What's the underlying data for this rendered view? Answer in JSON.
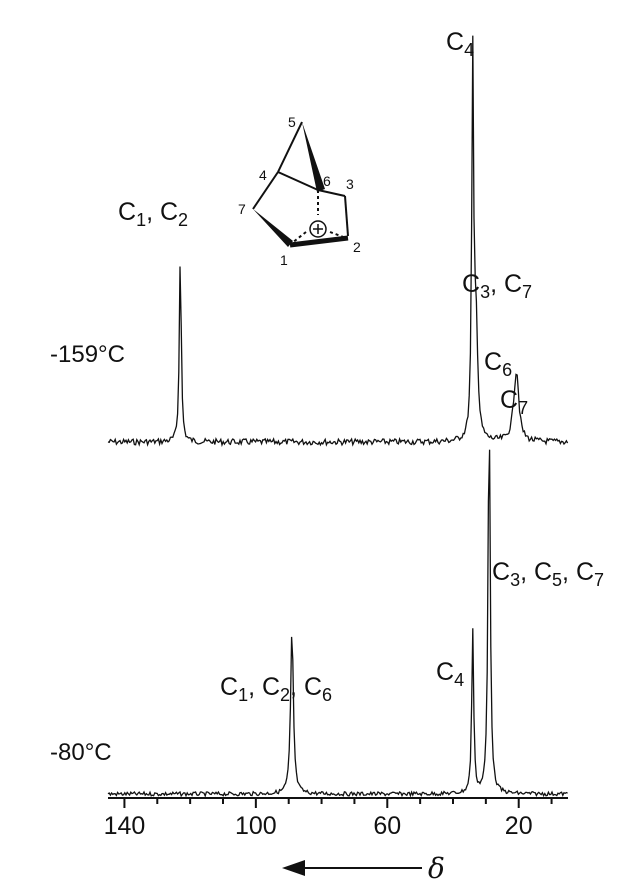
{
  "chart_data": {
    "type": "line",
    "xlabel": "δ",
    "x_axis": {
      "reversed": true,
      "xlim": [
        145,
        5
      ],
      "ticks": [
        140,
        100,
        60,
        20
      ],
      "tick_labels": [
        "140",
        "100",
        "60",
        "20"
      ]
    },
    "grid": false,
    "series": [
      {
        "name": "-159°C",
        "peaks": [
          {
            "x": 123,
            "height": 0.86,
            "width": 0.35,
            "label": [
              "C",
              "1",
              ", C",
              "2"
            ]
          },
          {
            "x": 34,
            "height": 1.7,
            "width": 0.35,
            "label": [
              "C",
              "4"
            ]
          },
          {
            "x": 33,
            "height": 0.52,
            "width": 0.6,
            "label": [
              "C",
              "3",
              ", C",
              "7"
            ]
          },
          {
            "x": 21,
            "height": 0.18,
            "width": 1.0,
            "label": [
              "C",
              "6"
            ]
          },
          {
            "x": 20.5,
            "height": 0.17,
            "width": 0.7,
            "label": [
              "C",
              "7"
            ]
          }
        ]
      },
      {
        "name": "-80°C",
        "peaks": [
          {
            "x": 89,
            "height": 0.75,
            "width": 0.5,
            "label": [
              "C",
              "1",
              ", C",
              "2",
              ", C",
              "6"
            ]
          },
          {
            "x": 34,
            "height": 0.75,
            "width": 0.35,
            "label": [
              "C",
              "4"
            ]
          },
          {
            "x": 29,
            "height": 1.75,
            "width": 0.4,
            "label": [
              "C",
              "3",
              ", C",
              "5",
              ", C",
              "7"
            ]
          }
        ]
      }
    ],
    "structure": {
      "atom_labels": [
        "1",
        "2",
        "3",
        "4",
        "5",
        "6",
        "7"
      ],
      "charge": "+"
    }
  }
}
